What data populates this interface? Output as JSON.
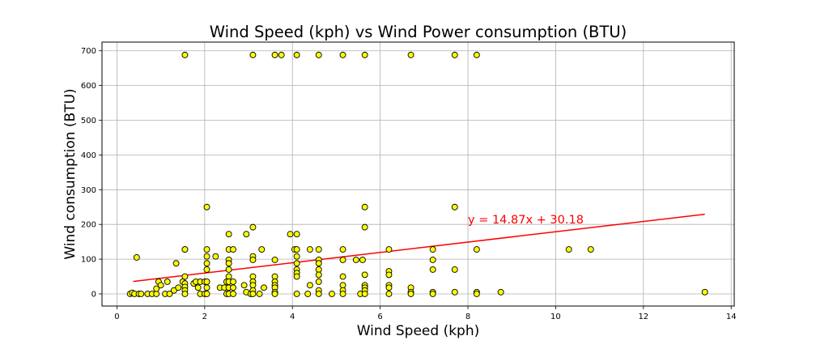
{
  "chart_data": {
    "type": "scatter",
    "title": "Wind Speed (kph) vs Wind Power consumption (BTU)",
    "xlabel": "Wind Speed (kph)",
    "ylabel": "Wind consumption (BTU)",
    "xlim": [
      -0.34,
      14.07
    ],
    "ylim": [
      -35,
      725
    ],
    "xticks": [
      0,
      2,
      4,
      6,
      8,
      10,
      12,
      14
    ],
    "yticks": [
      0,
      100,
      200,
      300,
      400,
      500,
      600,
      700
    ],
    "grid": true,
    "regression": {
      "slope": 14.87,
      "intercept": 30.18,
      "x_range": [
        0.37,
        13.4
      ],
      "color": "#ff0000"
    },
    "annotation": {
      "text": "y = 14.87x + 30.18",
      "x": 8.0,
      "y": 203,
      "color": "#ff0000"
    },
    "marker": {
      "face": "#ffff00",
      "edge": "#000000"
    },
    "points": [
      [
        0.3,
        0
      ],
      [
        0.35,
        3
      ],
      [
        0.4,
        0
      ],
      [
        0.45,
        105
      ],
      [
        0.5,
        0
      ],
      [
        0.55,
        0
      ],
      [
        0.7,
        0
      ],
      [
        0.8,
        0
      ],
      [
        0.9,
        0
      ],
      [
        0.9,
        15
      ],
      [
        0.95,
        35
      ],
      [
        1.0,
        25
      ],
      [
        1.1,
        0
      ],
      [
        1.15,
        35
      ],
      [
        1.2,
        0
      ],
      [
        1.3,
        10
      ],
      [
        1.35,
        88
      ],
      [
        1.4,
        18
      ],
      [
        1.5,
        35
      ],
      [
        1.55,
        688
      ],
      [
        1.55,
        128
      ],
      [
        1.55,
        128
      ],
      [
        1.55,
        50
      ],
      [
        1.55,
        30
      ],
      [
        1.55,
        20
      ],
      [
        1.55,
        10
      ],
      [
        1.55,
        0
      ],
      [
        1.75,
        30
      ],
      [
        1.8,
        35
      ],
      [
        1.85,
        18
      ],
      [
        1.9,
        35
      ],
      [
        1.9,
        0
      ],
      [
        2.0,
        35
      ],
      [
        2.0,
        0
      ],
      [
        2.05,
        250
      ],
      [
        2.05,
        128
      ],
      [
        2.05,
        108
      ],
      [
        2.05,
        88
      ],
      [
        2.05,
        70
      ],
      [
        2.05,
        35
      ],
      [
        2.05,
        18
      ],
      [
        2.05,
        0
      ],
      [
        2.25,
        108
      ],
      [
        2.35,
        18
      ],
      [
        2.45,
        18
      ],
      [
        2.5,
        0
      ],
      [
        2.5,
        35
      ],
      [
        2.55,
        172
      ],
      [
        2.55,
        128
      ],
      [
        2.55,
        98
      ],
      [
        2.55,
        88
      ],
      [
        2.55,
        70
      ],
      [
        2.55,
        50
      ],
      [
        2.55,
        35
      ],
      [
        2.55,
        18
      ],
      [
        2.55,
        0
      ],
      [
        2.65,
        128
      ],
      [
        2.65,
        35
      ],
      [
        2.65,
        18
      ],
      [
        2.65,
        0
      ],
      [
        2.9,
        25
      ],
      [
        2.95,
        172
      ],
      [
        2.95,
        5
      ],
      [
        3.05,
        0
      ],
      [
        3.1,
        688
      ],
      [
        3.1,
        192
      ],
      [
        3.1,
        108
      ],
      [
        3.1,
        98
      ],
      [
        3.1,
        50
      ],
      [
        3.1,
        35
      ],
      [
        3.1,
        25
      ],
      [
        3.1,
        10
      ],
      [
        3.1,
        0
      ],
      [
        3.25,
        0
      ],
      [
        3.3,
        128
      ],
      [
        3.35,
        18
      ],
      [
        3.6,
        688
      ],
      [
        3.6,
        98
      ],
      [
        3.6,
        50
      ],
      [
        3.6,
        35
      ],
      [
        3.6,
        25
      ],
      [
        3.6,
        18
      ],
      [
        3.6,
        5
      ],
      [
        3.6,
        0
      ],
      [
        3.75,
        688
      ],
      [
        3.95,
        172
      ],
      [
        4.05,
        128
      ],
      [
        4.1,
        688
      ],
      [
        4.1,
        172
      ],
      [
        4.1,
        128
      ],
      [
        4.1,
        108
      ],
      [
        4.1,
        88
      ],
      [
        4.1,
        70
      ],
      [
        4.1,
        60
      ],
      [
        4.1,
        50
      ],
      [
        4.1,
        0
      ],
      [
        4.35,
        0
      ],
      [
        4.4,
        128
      ],
      [
        4.4,
        25
      ],
      [
        4.6,
        688
      ],
      [
        4.6,
        128
      ],
      [
        4.6,
        98
      ],
      [
        4.6,
        88
      ],
      [
        4.6,
        70
      ],
      [
        4.6,
        55
      ],
      [
        4.6,
        35
      ],
      [
        4.6,
        10
      ],
      [
        4.6,
        0
      ],
      [
        4.9,
        0
      ],
      [
        5.15,
        688
      ],
      [
        5.15,
        128
      ],
      [
        5.15,
        98
      ],
      [
        5.15,
        50
      ],
      [
        5.15,
        25
      ],
      [
        5.15,
        10
      ],
      [
        5.15,
        0
      ],
      [
        5.45,
        98
      ],
      [
        5.55,
        0
      ],
      [
        5.6,
        98
      ],
      [
        5.65,
        688
      ],
      [
        5.65,
        250
      ],
      [
        5.65,
        192
      ],
      [
        5.65,
        55
      ],
      [
        5.65,
        25
      ],
      [
        5.65,
        18
      ],
      [
        5.65,
        10
      ],
      [
        5.65,
        0
      ],
      [
        6.2,
        128
      ],
      [
        6.2,
        65
      ],
      [
        6.2,
        55
      ],
      [
        6.2,
        25
      ],
      [
        6.2,
        18
      ],
      [
        6.2,
        0
      ],
      [
        6.7,
        688
      ],
      [
        6.7,
        18
      ],
      [
        6.7,
        5
      ],
      [
        6.7,
        0
      ],
      [
        7.2,
        128
      ],
      [
        7.2,
        98
      ],
      [
        7.2,
        70
      ],
      [
        7.2,
        5
      ],
      [
        7.2,
        0
      ],
      [
        7.7,
        688
      ],
      [
        7.7,
        250
      ],
      [
        7.7,
        70
      ],
      [
        7.7,
        5
      ],
      [
        8.2,
        688
      ],
      [
        8.2,
        128
      ],
      [
        8.2,
        5
      ],
      [
        8.2,
        0
      ],
      [
        8.75,
        5
      ],
      [
        10.3,
        128
      ],
      [
        10.8,
        128
      ],
      [
        13.4,
        5
      ]
    ]
  }
}
